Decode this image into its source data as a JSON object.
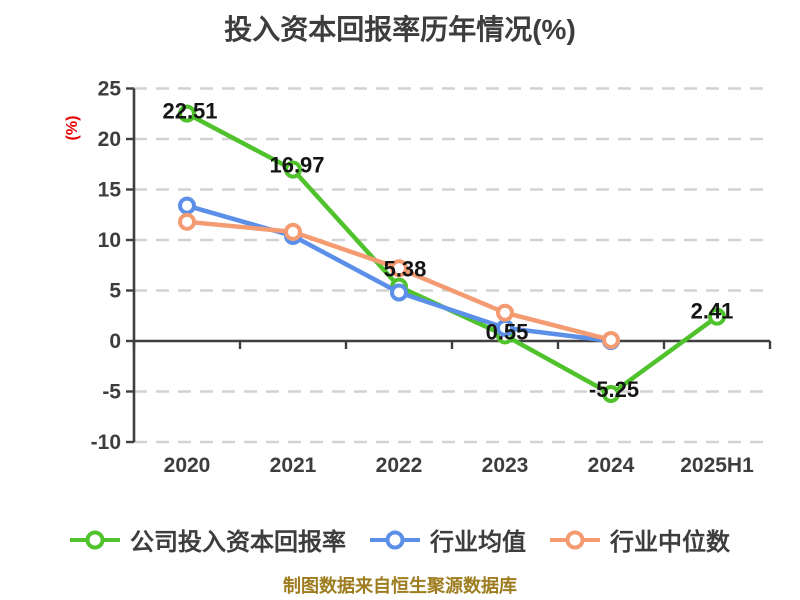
{
  "footer": "制图数据来自恒生聚源数据库",
  "colors": {
    "background": "#ffffff",
    "title_text": "#3d3d3d",
    "axis_line": "#3f3f3f",
    "tick_label": "#3d3d3d",
    "gridline": "#d2d2d2",
    "data_label": "#141414",
    "y_axis_title": "#e60000",
    "footer_text": "#9d7d1f",
    "series_company": "#4fc22c",
    "series_industry_mean": "#5b8fe8",
    "series_industry_median": "#f49b72"
  },
  "chart_data": {
    "type": "line",
    "title": "投入资本回报率历年情况(%)",
    "ylabel": "(%)",
    "xlabel": "",
    "categories": [
      "2020",
      "2021",
      "2022",
      "2023",
      "2024",
      "2025H1"
    ],
    "ylim": [
      -10,
      25
    ],
    "yticks": [
      25,
      20,
      15,
      10,
      5,
      0,
      -5,
      -10
    ],
    "grid": "horizontal-dashed",
    "legend_position": "bottom",
    "marker": "circle-white-fill",
    "series": [
      {
        "name": "公司投入资本回报率",
        "color": "#4fc22c",
        "values": [
          22.51,
          16.97,
          5.38,
          0.55,
          -5.25,
          2.41
        ],
        "labels": [
          "22.51",
          "16.97",
          "5.38",
          "0.55",
          "-5.25",
          "2.41"
        ],
        "label_offsets": [
          [
            3,
            -2
          ],
          [
            4,
            -4
          ],
          [
            6,
            -17
          ],
          [
            2,
            -3
          ],
          [
            3,
            -4
          ],
          [
            -5,
            -5
          ]
        ]
      },
      {
        "name": "行业均值",
        "color": "#5b8fe8",
        "values": [
          13.4,
          10.4,
          4.8,
          1.3,
          0.0,
          null
        ],
        "labels": null
      },
      {
        "name": "行业中位数",
        "color": "#f49b72",
        "values": [
          11.8,
          10.8,
          7.2,
          2.8,
          0.1,
          null
        ],
        "labels": null
      }
    ]
  }
}
